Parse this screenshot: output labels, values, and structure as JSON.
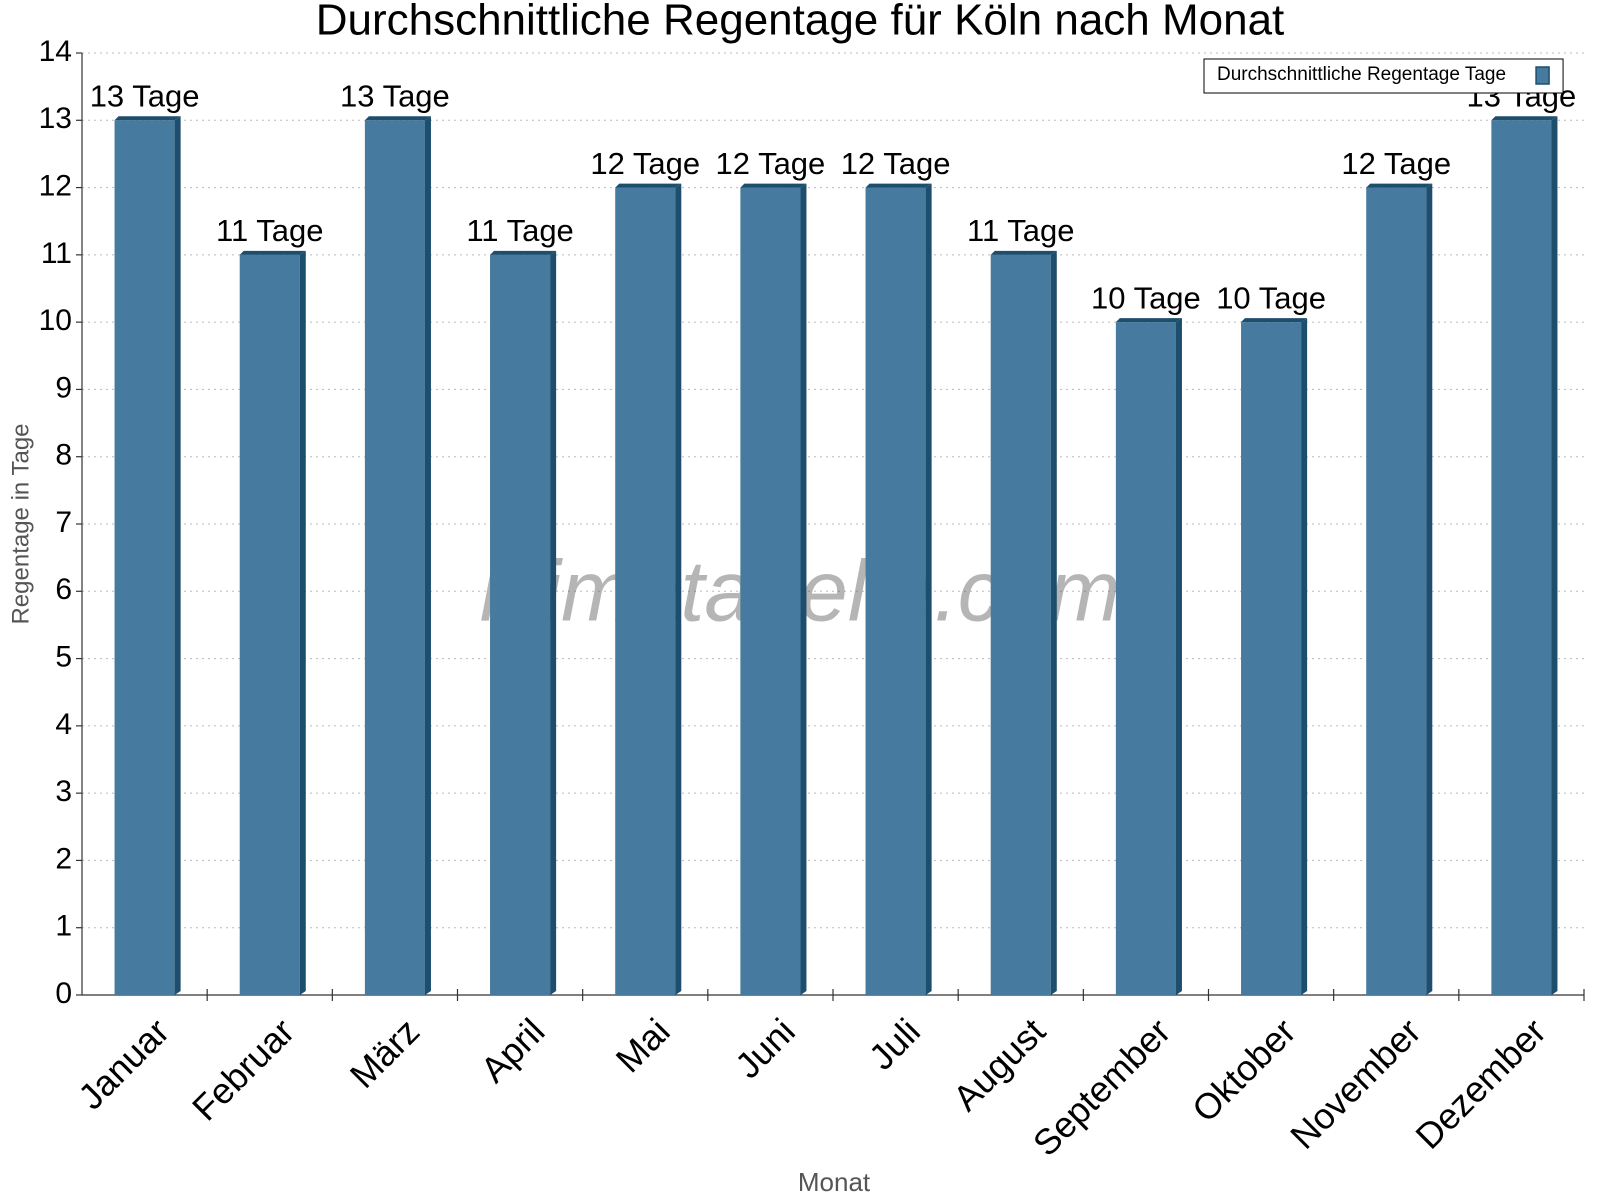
{
  "chart_data": {
    "type": "bar",
    "title": "Durchschnittliche Regentage für Köln nach Monat",
    "x_label": "Monat",
    "y_label": "Regentage in Tage",
    "watermark": "klimatabelle.com",
    "categories": [
      "Januar",
      "Februar",
      "März",
      "April",
      "Mai",
      "Juni",
      "Juli",
      "August",
      "September",
      "Oktober",
      "November",
      "Dezember"
    ],
    "series": [
      {
        "name": "Durchschnittliche Regentage Tage",
        "color": "#467a9e",
        "values": [
          13,
          11,
          13,
          11,
          12,
          12,
          12,
          11,
          10,
          10,
          12,
          13
        ],
        "value_labels": [
          "13 Tage",
          "11 Tage",
          "13 Tage",
          "11 Tage",
          "12 Tage",
          "12 Tage",
          "12 Tage",
          "11 Tage",
          "10 Tage",
          "10 Tage",
          "12 Tage",
          "13 Tage"
        ]
      }
    ],
    "ylim": [
      0,
      14
    ],
    "yticks": [
      0,
      1,
      2,
      3,
      4,
      5,
      6,
      7,
      8,
      9,
      10,
      11,
      12,
      13,
      14
    ],
    "grid": true,
    "legend": "top-right"
  }
}
